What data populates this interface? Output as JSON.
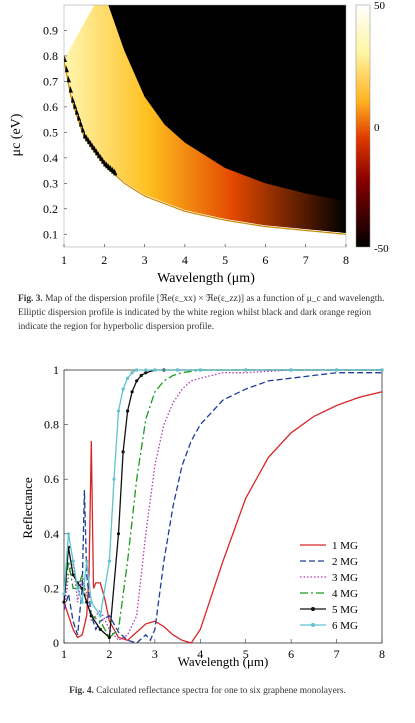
{
  "figure3": {
    "caption_label": "Fig. 3.",
    "caption_text": "Map of the dispersion profile [ℜe(ε_xx) × ℜe(ε_zz)] as a function of μ_c and wavelength. Elliptic dispersion profile is indicated by the white region whilst black and dark orange region indicate the region for hyperbolic dispersion profile.",
    "xlabel": "Wavelength (μm)",
    "ylabel": "μc (eV)",
    "x_ticks": [
      "1",
      "2",
      "3",
      "4",
      "5",
      "6",
      "7",
      "8"
    ],
    "y_ticks": [
      "0.1",
      "0.2",
      "0.3",
      "0.4",
      "0.5",
      "0.6",
      "0.7",
      "0.8",
      "0.9"
    ],
    "colorbar_ticks": [
      "50",
      "0",
      "-50"
    ]
  },
  "figure4": {
    "caption_label": "Fig. 4.",
    "caption_text": "Calculated reflectance spectra for one to six graphene monolayers.",
    "xlabel": "Wavelength (μm)",
    "ylabel": "Reflectance",
    "x_ticks": [
      "1",
      "2",
      "3",
      "4",
      "5",
      "6",
      "7",
      "8"
    ],
    "y_ticks": [
      "0",
      "0.2",
      "0.4",
      "0.6",
      "0.8",
      "1"
    ],
    "legend": [
      "1 MG",
      "2 MG",
      "3 MG",
      "4 MG",
      "5 MG",
      "6 MG"
    ]
  },
  "chart_data": [
    {
      "type": "heatmap",
      "xlabel": "Wavelength (μm)",
      "ylabel": "μc (eV)",
      "xlim": [
        1,
        8
      ],
      "ylim": [
        0.05,
        1.0
      ],
      "colorbar_range": [
        -50,
        50
      ],
      "colorbar_ticks": [
        50,
        0,
        -50
      ],
      "boundary_curve": {
        "x": [
          1.0,
          1.2,
          1.5,
          2.0,
          2.5,
          3.0,
          3.5,
          4.0,
          5.0,
          6.0,
          7.0,
          8.0
        ],
        "y": [
          0.78,
          0.62,
          0.48,
          0.37,
          0.3,
          0.25,
          0.22,
          0.19,
          0.155,
          0.13,
          0.115,
          0.1
        ]
      },
      "hyperbolic_onset_curve": {
        "x": [
          2.1,
          2.5,
          3.0,
          3.5,
          4.0,
          5.0,
          6.0,
          7.0,
          8.0
        ],
        "y": [
          1.0,
          0.82,
          0.64,
          0.53,
          0.46,
          0.36,
          0.3,
          0.26,
          0.23
        ]
      }
    },
    {
      "type": "line",
      "xlabel": "Wavelength (μm)",
      "ylabel": "Reflectance",
      "xlim": [
        1,
        8
      ],
      "ylim": [
        0,
        1
      ],
      "legend_position": "center-right",
      "series": [
        {
          "name": "1 MG",
          "color": "#d62728",
          "dash": "solid",
          "x": [
            1.0,
            1.1,
            1.2,
            1.3,
            1.4,
            1.5,
            1.55,
            1.6,
            1.65,
            1.7,
            1.8,
            1.9,
            2.0,
            2.2,
            2.4,
            2.6,
            2.8,
            3.0,
            3.2,
            3.4,
            3.6,
            3.8,
            4.0,
            4.5,
            5.0,
            5.5,
            6.0,
            6.5,
            7.0,
            7.5,
            8.0
          ],
          "y": [
            0.15,
            0.1,
            0.05,
            0.02,
            0.03,
            0.1,
            0.25,
            0.74,
            0.2,
            0.22,
            0.22,
            0.16,
            0.08,
            0.02,
            0.01,
            0.04,
            0.07,
            0.08,
            0.06,
            0.03,
            0.01,
            0.0,
            0.05,
            0.3,
            0.53,
            0.68,
            0.77,
            0.83,
            0.87,
            0.9,
            0.92
          ]
        },
        {
          "name": "2 MG",
          "color": "#1f3d99",
          "dash": "6,3",
          "x": [
            1.0,
            1.1,
            1.2,
            1.3,
            1.4,
            1.45,
            1.5,
            1.6,
            1.7,
            1.8,
            2.0,
            2.2,
            2.4,
            2.6,
            2.8,
            2.9,
            3.0,
            3.2,
            3.4,
            3.6,
            3.8,
            4.0,
            4.5,
            5.0,
            5.5,
            6.0,
            7.0,
            8.0
          ],
          "y": [
            0.12,
            0.18,
            0.08,
            0.03,
            0.2,
            0.56,
            0.25,
            0.1,
            0.05,
            0.08,
            0.1,
            0.04,
            0.01,
            0.0,
            0.03,
            0.01,
            0.05,
            0.3,
            0.5,
            0.65,
            0.74,
            0.8,
            0.89,
            0.93,
            0.96,
            0.97,
            0.99,
            0.99
          ]
        },
        {
          "name": "3 MG",
          "color": "#b23ab2",
          "dash": "1.5,2",
          "x": [
            1.0,
            1.1,
            1.2,
            1.3,
            1.4,
            1.5,
            1.6,
            1.8,
            2.0,
            2.2,
            2.4,
            2.6,
            2.8,
            3.0,
            3.2,
            3.4,
            3.6,
            3.8,
            4.0,
            4.5,
            5.0,
            6.0,
            7.0,
            8.0
          ],
          "y": [
            0.12,
            0.25,
            0.3,
            0.15,
            0.25,
            0.18,
            0.08,
            0.12,
            0.05,
            0.01,
            0.03,
            0.1,
            0.4,
            0.65,
            0.8,
            0.88,
            0.93,
            0.96,
            0.97,
            0.99,
            0.99,
            1.0,
            1.0,
            1.0
          ]
        },
        {
          "name": "4 MG",
          "color": "#1a9a1a",
          "dash": "8,3,2,3",
          "x": [
            1.0,
            1.1,
            1.2,
            1.3,
            1.4,
            1.5,
            1.6,
            1.8,
            2.0,
            2.2,
            2.4,
            2.6,
            2.8,
            3.0,
            3.2,
            3.4,
            3.6,
            4.0,
            5.0,
            6.0,
            7.0,
            8.0
          ],
          "y": [
            0.15,
            0.3,
            0.2,
            0.2,
            0.25,
            0.15,
            0.1,
            0.08,
            0.02,
            0.05,
            0.3,
            0.6,
            0.82,
            0.92,
            0.96,
            0.98,
            0.99,
            1.0,
            1.0,
            1.0,
            1.0,
            1.0
          ]
        },
        {
          "name": "5 MG",
          "color": "#111111",
          "dash": "solid",
          "markers": true,
          "x": [
            1.0,
            1.1,
            1.2,
            1.3,
            1.4,
            1.5,
            1.6,
            1.8,
            2.0,
            2.2,
            2.3,
            2.4,
            2.5,
            2.6,
            2.7,
            2.8,
            3.0,
            3.2,
            3.5,
            4.0,
            5.0,
            6.0,
            7.0,
            8.0
          ],
          "y": [
            0.15,
            0.35,
            0.25,
            0.22,
            0.2,
            0.15,
            0.1,
            0.05,
            0.02,
            0.4,
            0.7,
            0.85,
            0.92,
            0.96,
            0.98,
            0.99,
            1.0,
            1.0,
            1.0,
            1.0,
            1.0,
            1.0,
            1.0,
            1.0
          ]
        },
        {
          "name": "6 MG",
          "color": "#5fc4cf",
          "dash": "solid",
          "markers": true,
          "x": [
            1.0,
            1.1,
            1.2,
            1.3,
            1.4,
            1.5,
            1.6,
            1.8,
            2.0,
            2.1,
            2.2,
            2.3,
            2.4,
            2.5,
            2.6,
            2.8,
            3.0,
            3.5,
            4.0,
            5.0,
            6.0,
            7.0,
            8.0
          ],
          "y": [
            0.18,
            0.4,
            0.3,
            0.2,
            0.15,
            0.3,
            0.15,
            0.1,
            0.3,
            0.6,
            0.85,
            0.93,
            0.97,
            0.99,
            1.0,
            1.0,
            1.0,
            1.0,
            1.0,
            1.0,
            1.0,
            1.0,
            1.0
          ]
        }
      ]
    }
  ]
}
